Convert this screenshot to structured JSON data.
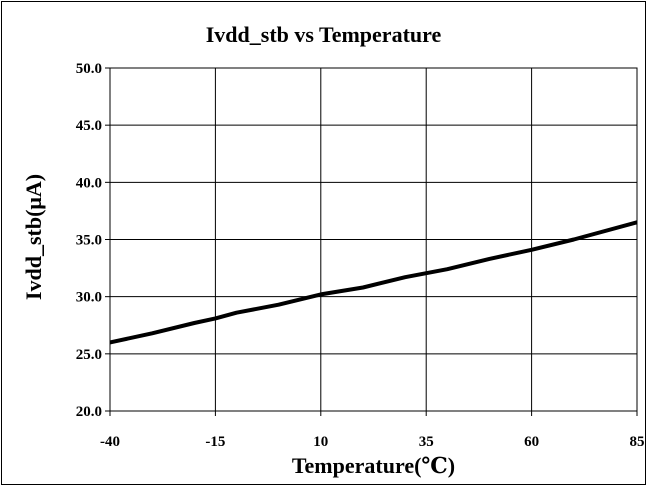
{
  "chart_data": {
    "type": "line",
    "title": "Ivdd_stb vs Temperature",
    "xlabel": "Temperature(℃)",
    "ylabel": "Ivdd_stb(μA)",
    "xlim": [
      -40,
      85
    ],
    "ylim": [
      20.0,
      50.0
    ],
    "x_ticks": [
      "-40",
      "-15",
      "10",
      "35",
      "60",
      "85"
    ],
    "y_ticks": [
      "20.0",
      "25.0",
      "30.0",
      "35.0",
      "40.0",
      "45.0",
      "50.0"
    ],
    "grid": true,
    "series": [
      {
        "color": "#000000",
        "x": [
          -40,
          -30,
          -20,
          -15,
          -10,
          0,
          10,
          20,
          30,
          40,
          50,
          60,
          70,
          85
        ],
        "y": [
          26.0,
          26.8,
          27.7,
          28.1,
          28.6,
          29.3,
          30.2,
          30.8,
          31.7,
          32.4,
          33.3,
          34.1,
          35.0,
          36.5
        ]
      }
    ]
  }
}
